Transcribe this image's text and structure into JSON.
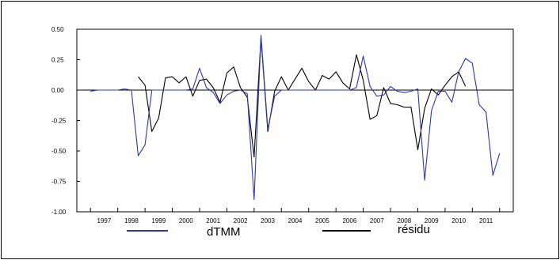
{
  "chart_data": {
    "type": "line",
    "title": "",
    "xlabel": "",
    "ylabel": "",
    "ylim": [
      -1.0,
      0.5
    ],
    "yticks": [
      "0.50",
      "0.25",
      "0.00",
      "-0.25",
      "-0.50",
      "-0.75",
      "-1.00"
    ],
    "x_tick_labels": [
      "1997",
      "1998",
      "1999",
      "2000",
      "2001",
      "2002",
      "2003",
      "2004",
      "2005",
      "2006",
      "2007",
      "2008",
      "2009",
      "2010",
      "2011"
    ],
    "grid": false,
    "zero_line": true,
    "legend_position": "bottom",
    "series": [
      {
        "name": "dTMM",
        "color": "#2b35b5",
        "points": [
          [
            1997.0,
            -0.01
          ],
          [
            1997.25,
            0.0
          ],
          [
            1997.5,
            0.0
          ],
          [
            1997.75,
            0.0
          ],
          [
            1998.0,
            0.0
          ],
          [
            1998.25,
            0.01
          ],
          [
            1998.5,
            0.0
          ],
          [
            1998.75,
            -0.54
          ],
          [
            1999.0,
            -0.45
          ],
          [
            1999.25,
            0.0
          ],
          [
            1999.5,
            0.0
          ],
          [
            1999.75,
            0.0
          ],
          [
            2000.0,
            0.0
          ],
          [
            2000.25,
            0.0
          ],
          [
            2000.5,
            0.0
          ],
          [
            2000.75,
            0.01
          ],
          [
            2001.0,
            0.18
          ],
          [
            2001.25,
            0.02
          ],
          [
            2001.5,
            -0.02
          ],
          [
            2001.75,
            -0.11
          ],
          [
            2002.0,
            -0.04
          ],
          [
            2002.25,
            -0.01
          ],
          [
            2002.5,
            0.0
          ],
          [
            2002.75,
            -0.03
          ],
          [
            2003.0,
            -0.9
          ],
          [
            2003.25,
            0.45
          ],
          [
            2003.5,
            -0.32
          ],
          [
            2003.75,
            -0.05
          ],
          [
            2004.0,
            0.0
          ],
          [
            2004.25,
            0.0
          ],
          [
            2004.5,
            0.0
          ],
          [
            2004.75,
            0.0
          ],
          [
            2005.0,
            0.0
          ],
          [
            2005.25,
            0.0
          ],
          [
            2005.5,
            0.0
          ],
          [
            2005.75,
            0.0
          ],
          [
            2006.0,
            0.0
          ],
          [
            2006.25,
            0.0
          ],
          [
            2006.5,
            0.0
          ],
          [
            2006.75,
            0.02
          ],
          [
            2007.0,
            0.28
          ],
          [
            2007.25,
            0.03
          ],
          [
            2007.5,
            -0.05
          ],
          [
            2007.75,
            -0.04
          ],
          [
            2008.0,
            0.03
          ],
          [
            2008.25,
            -0.01
          ],
          [
            2008.5,
            -0.02
          ],
          [
            2008.75,
            -0.01
          ],
          [
            2009.0,
            0.01
          ],
          [
            2009.25,
            -0.74
          ],
          [
            2009.5,
            -0.17
          ],
          [
            2009.75,
            -0.01
          ],
          [
            2010.0,
            -0.01
          ],
          [
            2010.25,
            -0.1
          ],
          [
            2010.5,
            0.15
          ],
          [
            2010.75,
            0.26
          ],
          [
            2011.0,
            0.22
          ],
          [
            2011.25,
            -0.12
          ],
          [
            2011.5,
            -0.18
          ],
          [
            2011.75,
            -0.7
          ],
          [
            2012.0,
            -0.52
          ]
        ]
      },
      {
        "name": "résidu",
        "color": "#000000",
        "points": [
          [
            1998.75,
            0.11
          ],
          [
            1999.0,
            0.04
          ],
          [
            1999.25,
            -0.34
          ],
          [
            1999.5,
            -0.23
          ],
          [
            1999.75,
            0.1
          ],
          [
            2000.0,
            0.11
          ],
          [
            2000.25,
            0.06
          ],
          [
            2000.5,
            0.11
          ],
          [
            2000.75,
            -0.05
          ],
          [
            2001.0,
            0.08
          ],
          [
            2001.25,
            0.09
          ],
          [
            2001.5,
            0.02
          ],
          [
            2001.75,
            -0.1
          ],
          [
            2002.0,
            0.14
          ],
          [
            2002.25,
            0.19
          ],
          [
            2002.5,
            0.02
          ],
          [
            2002.75,
            -0.06
          ],
          [
            2003.0,
            -0.55
          ],
          [
            2003.25,
            0.43
          ],
          [
            2003.5,
            -0.34
          ],
          [
            2003.75,
            -0.01
          ],
          [
            2004.0,
            0.11
          ],
          [
            2004.25,
            0.0
          ],
          [
            2004.5,
            0.09
          ],
          [
            2004.75,
            0.18
          ],
          [
            2005.0,
            0.07
          ],
          [
            2005.25,
            0.0
          ],
          [
            2005.5,
            0.12
          ],
          [
            2005.75,
            0.09
          ],
          [
            2006.0,
            0.15
          ],
          [
            2006.25,
            0.06
          ],
          [
            2006.5,
            0.01
          ],
          [
            2006.75,
            0.29
          ],
          [
            2007.0,
            0.08
          ],
          [
            2007.25,
            -0.24
          ],
          [
            2007.5,
            -0.21
          ],
          [
            2007.75,
            0.02
          ],
          [
            2008.0,
            -0.11
          ],
          [
            2008.25,
            -0.12
          ],
          [
            2008.5,
            -0.14
          ],
          [
            2008.75,
            -0.14
          ],
          [
            2009.0,
            -0.49
          ],
          [
            2009.25,
            -0.15
          ],
          [
            2009.5,
            0.01
          ],
          [
            2009.75,
            -0.04
          ],
          [
            2010.0,
            0.04
          ],
          [
            2010.25,
            0.11
          ],
          [
            2010.5,
            0.15
          ],
          [
            2010.75,
            0.03
          ]
        ]
      }
    ]
  },
  "legend": [
    {
      "name": "dTMM",
      "color": "#2b35b5"
    },
    {
      "name": "résidu",
      "color": "#000000"
    }
  ]
}
